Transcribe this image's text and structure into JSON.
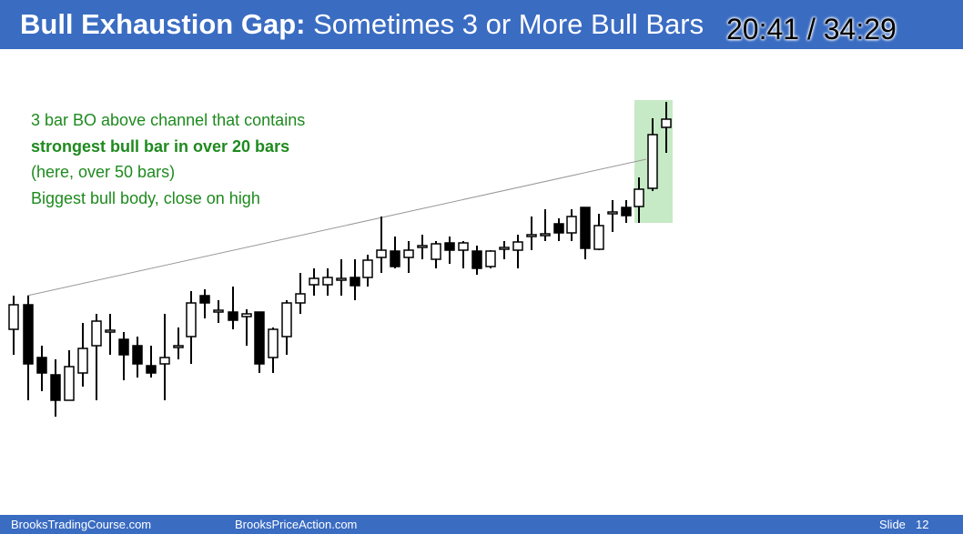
{
  "header": {
    "title_bold": "Bull Exhaustion Gap:",
    "title_rest": "Sometimes 3 or More Bull Bars"
  },
  "timer": "20:41 / 34:29",
  "annotation": {
    "lines": [
      "3 bar BO above channel that contains",
      "strongest bull bar in over 20 bars",
      "(here, over 50 bars)",
      "Biggest bull body, close on high"
    ]
  },
  "footer": {
    "left": "BrooksTradingCourse.com",
    "middle": "BrooksPriceAction.com",
    "slide_label": "Slide",
    "slide_number": "12"
  }
}
